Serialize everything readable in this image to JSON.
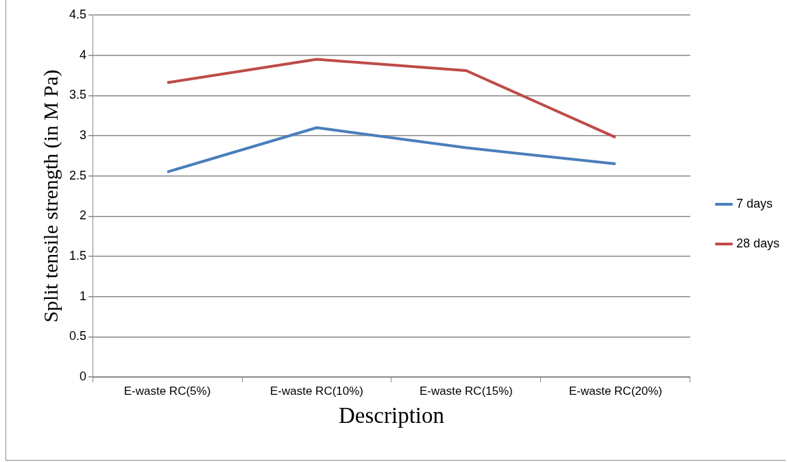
{
  "chart_data": {
    "type": "line",
    "xlabel": "Description",
    "ylabel": "Split tensile strength (in M Pa)",
    "categories": [
      "E-waste RC(5%)",
      "E-waste RC(10%)",
      "E-waste RC(15%)",
      "E-waste RC(20%)"
    ],
    "series": [
      {
        "name": "7 days",
        "color": "#4a7ebb",
        "values": [
          2.55,
          3.1,
          2.85,
          2.65
        ]
      },
      {
        "name": "28 days",
        "color": "#be4b48",
        "values": [
          3.66,
          3.95,
          3.81,
          2.98
        ]
      }
    ],
    "ylim": [
      0,
      4.5
    ],
    "yticks": [
      0,
      {
        "value": 0.5,
        "label": "0.5"
      },
      1,
      {
        "value": 1.5,
        "label": "1.5"
      },
      2,
      {
        "value": 2.5,
        "label": "2.5"
      },
      3,
      {
        "value": 3.5,
        "label": "3.5"
      },
      4,
      {
        "value": 4.5,
        "label": "4.5"
      }
    ],
    "grid": "y",
    "legend": "right",
    "marker": "none",
    "line_style": "solid"
  }
}
